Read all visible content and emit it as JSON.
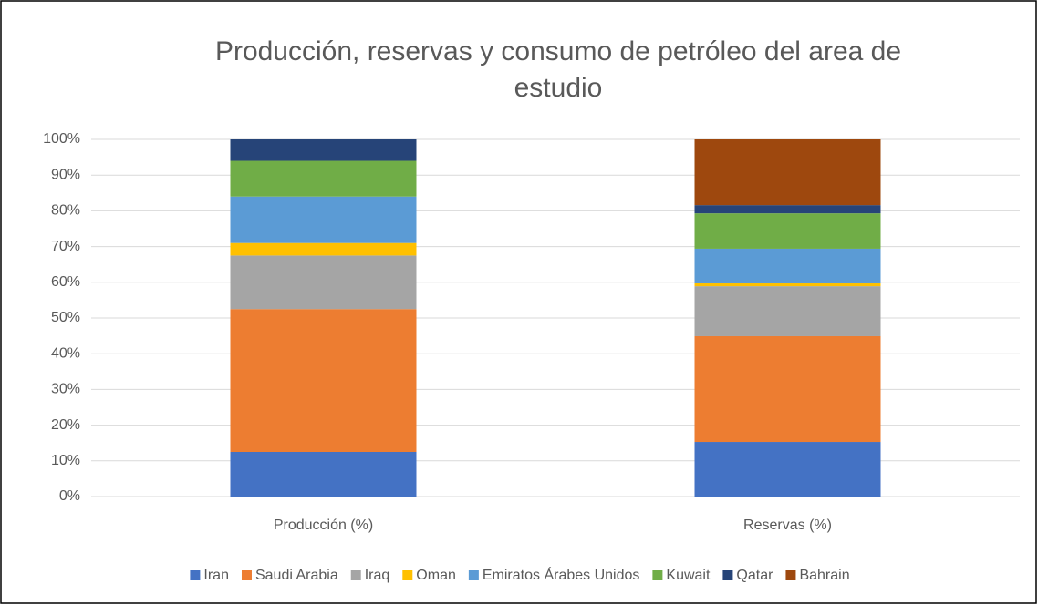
{
  "chart_data": {
    "type": "stacked_bar_100",
    "title": "Producción, reservas y consumo de petróleo del area de estudio",
    "categories": [
      "Producción (%)",
      "Reservas (%)"
    ],
    "series": [
      {
        "name": "Iran",
        "color": "#4472c4",
        "values": [
          12.5,
          15.3
        ]
      },
      {
        "name": "Saudi Arabia",
        "color": "#ed7d31",
        "values": [
          40,
          29.6
        ]
      },
      {
        "name": "Iraq",
        "color": "#a5a5a5",
        "values": [
          15,
          14
        ]
      },
      {
        "name": "Oman",
        "color": "#ffc000",
        "values": [
          3.5,
          0.8
        ]
      },
      {
        "name": "Emiratos Árabes Unidos",
        "color": "#5b9bd5",
        "values": [
          13,
          9.7
        ]
      },
      {
        "name": "Kuwait",
        "color": "#70ad47",
        "values": [
          10,
          9.9
        ]
      },
      {
        "name": "Qatar",
        "color": "#264478",
        "values": [
          6,
          2.3
        ]
      },
      {
        "name": "Bahrain",
        "color": "#9e480e",
        "values": [
          0,
          18.4
        ]
      }
    ],
    "ylim": [
      0,
      100
    ],
    "yticks": [
      {
        "value": 0,
        "label": "0%"
      },
      {
        "value": 10,
        "label": "10%"
      },
      {
        "value": 20,
        "label": "20%"
      },
      {
        "value": 30,
        "label": "30%"
      },
      {
        "value": 40,
        "label": "40%"
      },
      {
        "value": 50,
        "label": "50%"
      },
      {
        "value": 60,
        "label": "60%"
      },
      {
        "value": 70,
        "label": "70%"
      },
      {
        "value": 80,
        "label": "80%"
      },
      {
        "value": 90,
        "label": "90%"
      },
      {
        "value": 100,
        "label": "100%"
      }
    ],
    "grid": true,
    "legend": "bottom"
  }
}
